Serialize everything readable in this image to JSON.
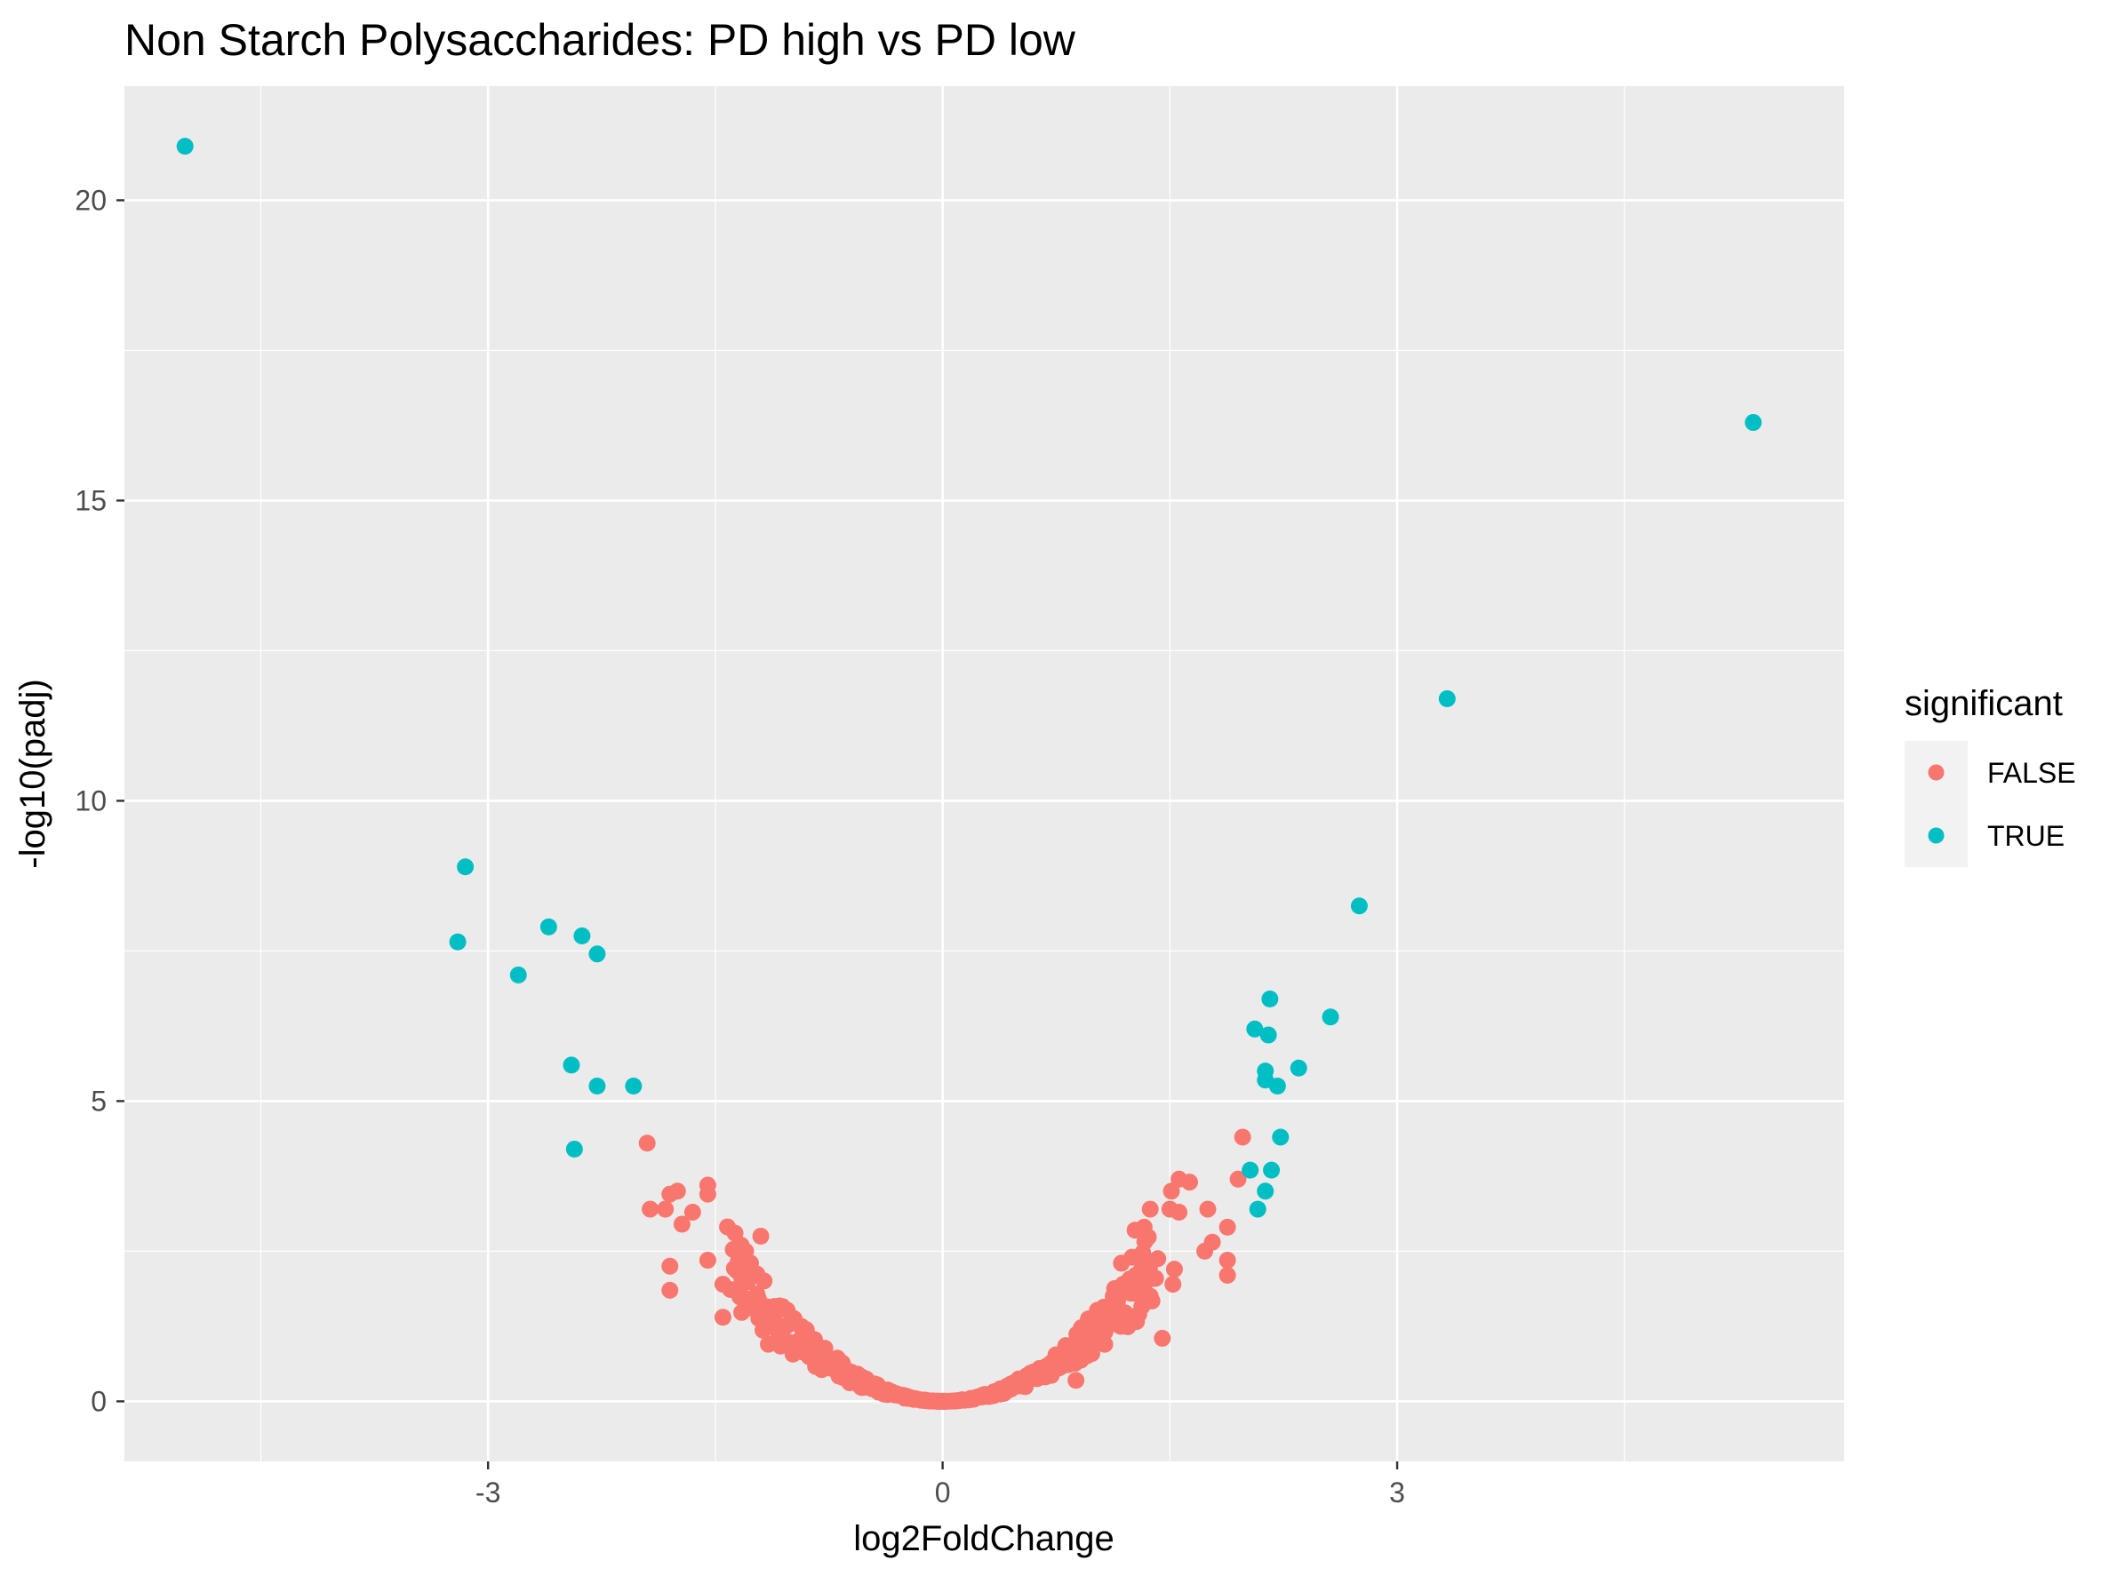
{
  "chart_data": {
    "type": "scatter",
    "title": "Non Starch Polysaccharides: PD high vs PD low",
    "xlabel": "log2FoldChange",
    "ylabel": "-log10(padj)",
    "xlim": [
      -5.4,
      5.95
    ],
    "ylim": [
      -1.0,
      21.9
    ],
    "x_ticks": [
      -3,
      0,
      3
    ],
    "x_tick_labels": [
      "-3",
      "0",
      "3"
    ],
    "y_ticks": [
      0,
      5,
      10,
      15,
      20
    ],
    "y_tick_labels": [
      "0",
      "5",
      "10",
      "15",
      "20"
    ],
    "grid": true,
    "legend": {
      "title": "significant",
      "position": "right",
      "entries": [
        {
          "label": "FALSE",
          "color": "#F8766D"
        },
        {
          "label": "TRUE",
          "color": "#00BFC4"
        }
      ]
    },
    "colors": {
      "FALSE": "#F8766D",
      "TRUE": "#00BFC4",
      "panel": "#EBEBEB",
      "grid": "#FFFFFF"
    },
    "series": [
      {
        "name": "TRUE",
        "points": [
          [
            -5.0,
            20.9
          ],
          [
            5.35,
            16.3
          ],
          [
            3.33,
            11.7
          ],
          [
            2.75,
            8.25
          ],
          [
            -3.15,
            8.9
          ],
          [
            -3.2,
            7.65
          ],
          [
            -2.8,
            7.1
          ],
          [
            -2.6,
            7.9
          ],
          [
            -2.38,
            7.75
          ],
          [
            -2.28,
            7.45
          ],
          [
            -2.45,
            5.6
          ],
          [
            -2.28,
            5.25
          ],
          [
            -2.04,
            5.25
          ],
          [
            -2.43,
            4.2
          ],
          [
            2.16,
            6.7
          ],
          [
            2.06,
            6.2
          ],
          [
            2.15,
            6.1
          ],
          [
            2.56,
            6.4
          ],
          [
            2.13,
            5.5
          ],
          [
            2.13,
            5.35
          ],
          [
            2.21,
            5.25
          ],
          [
            2.35,
            5.55
          ],
          [
            2.23,
            4.4
          ],
          [
            2.03,
            3.85
          ],
          [
            2.17,
            3.85
          ],
          [
            2.13,
            3.5
          ],
          [
            2.08,
            3.2
          ]
        ]
      },
      {
        "name": "FALSE",
        "anchors": [
          [
            -1.95,
            4.3
          ],
          [
            -1.55,
            3.6
          ],
          [
            -1.55,
            3.45
          ],
          [
            -1.75,
            3.5
          ],
          [
            -1.8,
            3.45
          ],
          [
            -1.83,
            3.2
          ],
          [
            -1.93,
            3.2
          ],
          [
            -1.65,
            3.15
          ],
          [
            -1.72,
            2.95
          ],
          [
            -1.37,
            2.8
          ],
          [
            -1.2,
            2.75
          ],
          [
            -1.33,
            2.6
          ],
          [
            -1.3,
            2.5
          ],
          [
            -1.55,
            2.35
          ],
          [
            -1.8,
            2.25
          ],
          [
            -1.8,
            1.85
          ],
          [
            -1.45,
            1.95
          ],
          [
            -1.45,
            1.4
          ],
          [
            -1.17,
            1.35
          ],
          [
            -1.15,
            0.95
          ],
          [
            -1.07,
            0.92
          ],
          [
            1.56,
            3.7
          ],
          [
            1.63,
            3.65
          ],
          [
            1.51,
            3.5
          ],
          [
            1.56,
            3.15
          ],
          [
            1.5,
            3.2
          ],
          [
            1.37,
            3.2
          ],
          [
            1.33,
            2.9
          ],
          [
            1.27,
            2.85
          ],
          [
            1.75,
            3.2
          ],
          [
            1.95,
            3.7
          ],
          [
            1.98,
            4.4
          ],
          [
            1.88,
            2.9
          ],
          [
            1.78,
            2.65
          ],
          [
            1.73,
            2.5
          ],
          [
            1.88,
            2.35
          ],
          [
            1.88,
            2.1
          ],
          [
            1.53,
            2.2
          ],
          [
            1.52,
            1.95
          ],
          [
            1.45,
            1.05
          ],
          [
            1.07,
            0.95
          ],
          [
            1.0,
            1.0
          ],
          [
            0.88,
            0.9
          ],
          [
            0.81,
            0.75
          ],
          [
            0.75,
            0.65
          ],
          [
            0.88,
            0.35
          ],
          [
            1.25,
            2.4
          ],
          [
            1.18,
            2.3
          ]
        ],
        "curve_center_x": 0,
        "curve_coefficient": 1.15,
        "curve_x_range": [
          -1.4,
          1.4
        ],
        "curve_point_count": 340
      }
    ]
  }
}
